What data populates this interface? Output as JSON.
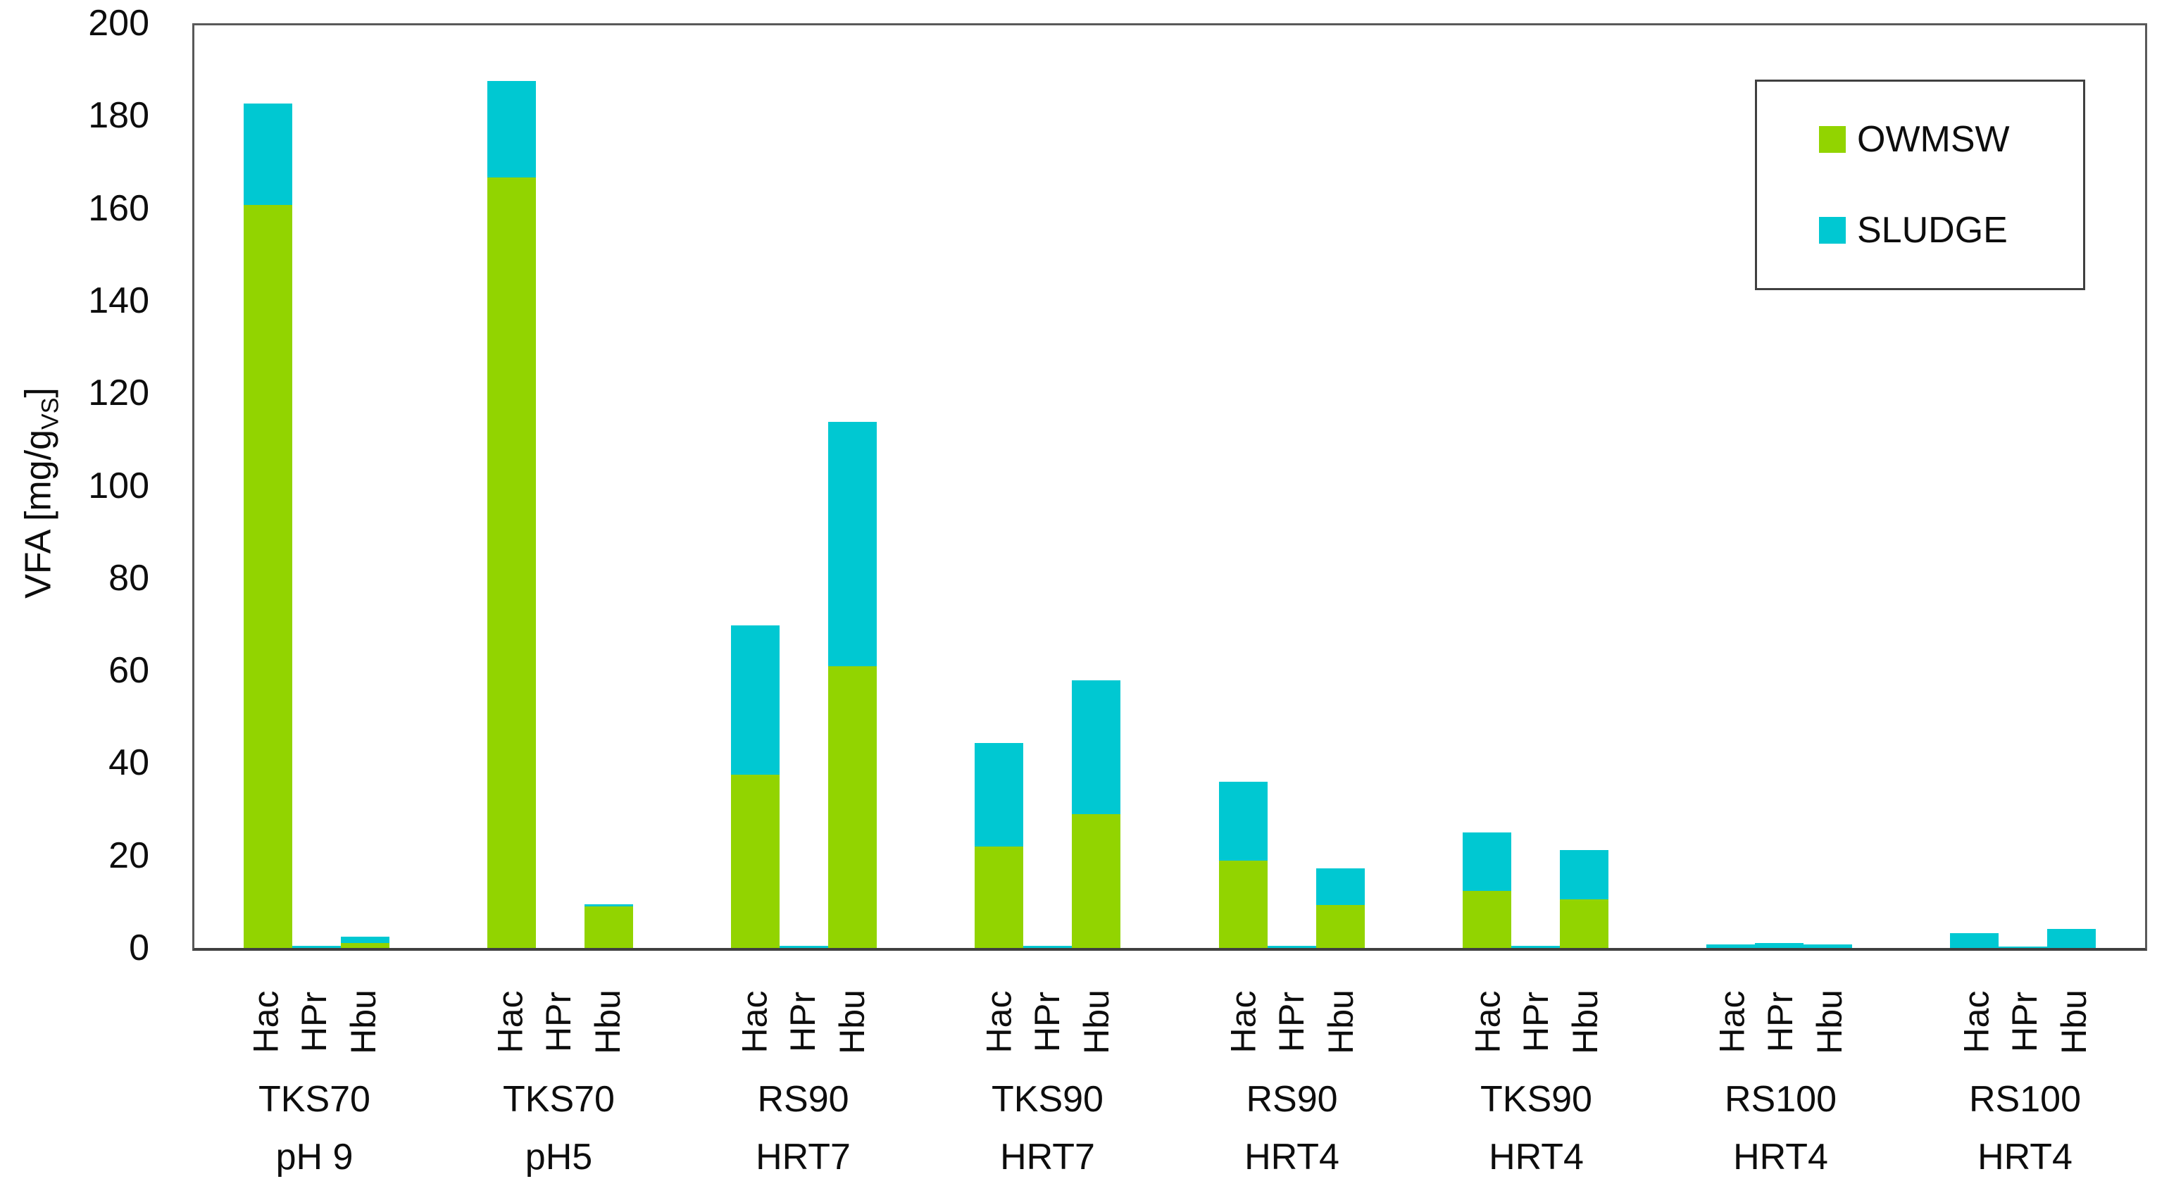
{
  "chart_data": {
    "type": "bar",
    "stacked": true,
    "ylabel_prefix": "VFA [mg/g",
    "ylabel_sub": "VS",
    "ylabel_suffix": "]",
    "ylim": [
      0,
      200
    ],
    "ytick_step": 20,
    "grid": false,
    "legend_position": "top-right",
    "legend": [
      "OWMSW",
      "SLUDGE"
    ],
    "series_colors": {
      "OWMSW": "#92d400",
      "SLUDGE": "#00c8d2"
    },
    "subcategories": [
      "Hac",
      "HPr",
      "Hbu"
    ],
    "groups": [
      {
        "label_line1": "TKS70",
        "label_line2": "pH 9",
        "OWMSW": [
          161,
          0,
          1.0
        ],
        "SLUDGE": [
          22,
          0.5,
          1.5
        ]
      },
      {
        "label_line1": "TKS70",
        "label_line2": "pH5",
        "OWMSW": [
          167,
          0,
          9.0
        ],
        "SLUDGE": [
          21,
          0,
          0.5
        ]
      },
      {
        "label_line1": "RS90",
        "label_line2": "HRT7",
        "OWMSW": [
          37.5,
          0,
          61
        ],
        "SLUDGE": [
          32.5,
          0.5,
          53
        ]
      },
      {
        "label_line1": "TKS90",
        "label_line2": "HRT7",
        "OWMSW": [
          22,
          0,
          29
        ],
        "SLUDGE": [
          22.5,
          0.5,
          29
        ]
      },
      {
        "label_line1": "RS90",
        "label_line2": "HRT4",
        "OWMSW": [
          19,
          0,
          9.3
        ],
        "SLUDGE": [
          17,
          0.5,
          8
        ]
      },
      {
        "label_line1": "TKS90",
        "label_line2": "HRT4",
        "OWMSW": [
          12.4,
          0,
          10.5
        ],
        "SLUDGE": [
          12.6,
          0.5,
          10.7
        ]
      },
      {
        "label_line1": "RS100",
        "label_line2": "HRT4",
        "OWMSW": [
          0,
          0,
          0
        ],
        "SLUDGE": [
          0.8,
          1.0,
          0.8
        ]
      },
      {
        "label_line1": "RS100",
        "label_line2": "HRT4",
        "OWMSW": [
          0,
          0,
          0
        ],
        "SLUDGE": [
          3.2,
          0.3,
          4.2
        ]
      }
    ]
  }
}
